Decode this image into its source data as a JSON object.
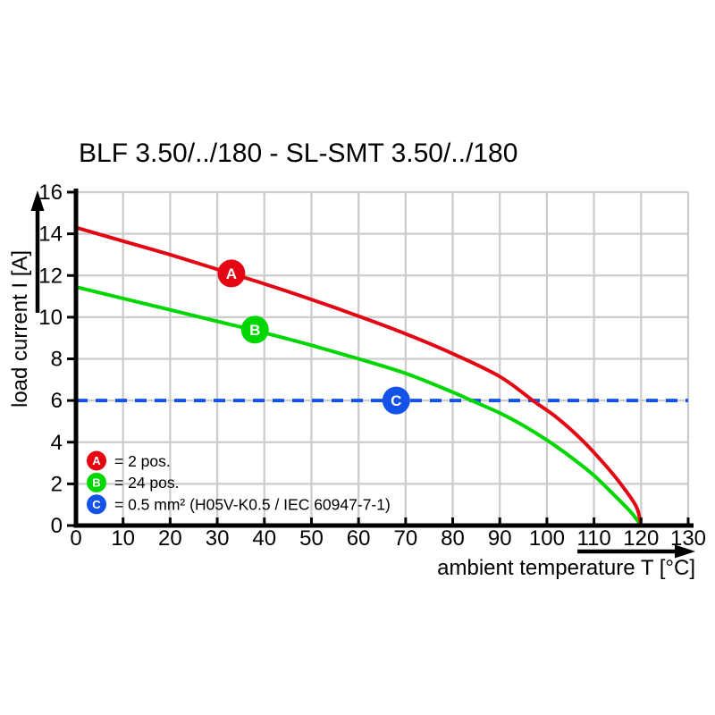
{
  "chart_data": {
    "type": "line",
    "title": "BLF 3.50/../180 - SL-SMT 3.50/../180",
    "x_label": "ambient temperature T [°C]",
    "y_label": "load current I [A]",
    "xlim": [
      0,
      130
    ],
    "ylim": [
      0,
      16
    ],
    "x_ticks": [
      0,
      10,
      20,
      30,
      40,
      50,
      60,
      70,
      80,
      90,
      100,
      110,
      120,
      130
    ],
    "y_ticks": [
      0,
      2,
      4,
      6,
      8,
      10,
      12,
      14,
      16
    ],
    "grid": true,
    "legend_position": "inside-bottom-left",
    "colors": {
      "grid": "#cccccc",
      "axis": "#000000",
      "red": "#e30613",
      "green": "#00d600",
      "blue": "#1453e8"
    },
    "series": [
      {
        "name": "A",
        "letter": "A",
        "legend_label": "= 2 pos.",
        "color": "#e30613",
        "style": "solid",
        "marker_at": [
          33,
          12.1
        ],
        "points": [
          [
            0,
            14.3
          ],
          [
            10,
            13.65
          ],
          [
            20,
            13.0
          ],
          [
            30,
            12.3
          ],
          [
            40,
            11.6
          ],
          [
            50,
            10.85
          ],
          [
            60,
            10.05
          ],
          [
            70,
            9.2
          ],
          [
            80,
            8.25
          ],
          [
            90,
            7.15
          ],
          [
            97,
            6.0
          ],
          [
            102,
            5.2
          ],
          [
            107,
            4.2
          ],
          [
            112,
            3.0
          ],
          [
            116,
            1.9
          ],
          [
            119,
            0.9
          ],
          [
            120,
            0
          ]
        ]
      },
      {
        "name": "B",
        "letter": "B",
        "legend_label": "= 24 pos.",
        "color": "#00d600",
        "style": "solid",
        "marker_at": [
          38,
          9.4
        ],
        "points": [
          [
            0,
            11.45
          ],
          [
            10,
            10.9
          ],
          [
            20,
            10.35
          ],
          [
            30,
            9.8
          ],
          [
            40,
            9.25
          ],
          [
            50,
            8.65
          ],
          [
            60,
            8.0
          ],
          [
            70,
            7.3
          ],
          [
            80,
            6.4
          ],
          [
            84,
            6.0
          ],
          [
            90,
            5.4
          ],
          [
            95,
            4.8
          ],
          [
            100,
            4.1
          ],
          [
            105,
            3.3
          ],
          [
            110,
            2.4
          ],
          [
            115,
            1.3
          ],
          [
            118,
            0.6
          ],
          [
            120,
            0
          ]
        ]
      },
      {
        "name": "C",
        "letter": "C",
        "legend_label": "= 0.5 mm² (H05V-K0.5 / IEC 60947-7-1)",
        "color": "#1453e8",
        "style": "dashed",
        "marker_at": [
          68,
          6
        ],
        "points": [
          [
            0,
            6
          ],
          [
            130,
            6
          ]
        ]
      }
    ]
  }
}
